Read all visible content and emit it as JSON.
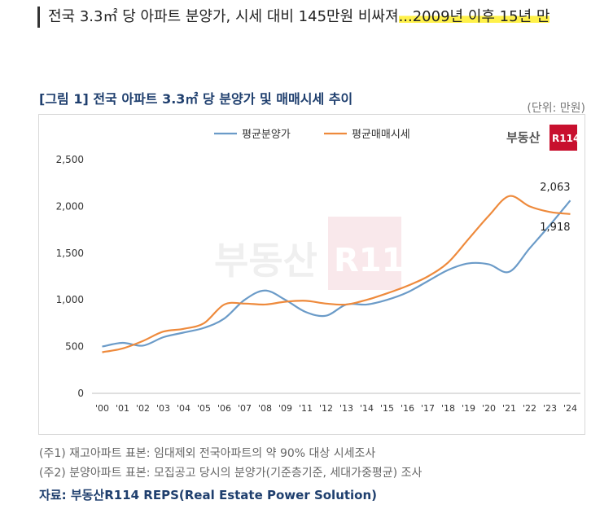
{
  "headline": {
    "pre": "전국 3.3㎡ 당 아파트 분양가, 시세 대비 145만원 비싸져",
    "highlight": "...2009년 이후 15년 만"
  },
  "figure_title": "[그림 1] 전국 아파트 3.3㎡ 당 분양가 및 매매시세 추이",
  "unit": "(단위: 만원)",
  "brand": {
    "text": "부동산",
    "badge": "R114",
    "color": "#c8102e"
  },
  "notes": [
    "(주1) 재고아파트 표본: 임대제외 전국아파트의 약 90% 대상 시세조사",
    "(주2) 분양아파트 표본: 모집공고 당시의 분양가(기준층기준, 세대가중평균) 조사"
  ],
  "source": "자료: 부동산R114 REPS(Real Estate Power Solution)",
  "chart_data": {
    "type": "line",
    "title": "",
    "xlabel": "",
    "ylabel": "",
    "ylim": [
      0,
      2500
    ],
    "yticks": [
      0,
      500,
      1000,
      1500,
      2000,
      2500
    ],
    "ytick_labels": [
      "0",
      "500",
      "1,000",
      "1,500",
      "2,000",
      "2,500"
    ],
    "categories": [
      "'00",
      "'01",
      "'02",
      "'03",
      "'04",
      "'05",
      "'06",
      "'07",
      "'08",
      "'09",
      "'11",
      "'12",
      "'13",
      "'14",
      "'15",
      "'16",
      "'17",
      "'18",
      "'19",
      "'20",
      "'21",
      "'22",
      "'23",
      "'24"
    ],
    "legend_position": "top",
    "series": [
      {
        "name": "평균분양가",
        "color": "#6b9bc8",
        "values": [
          500,
          540,
          510,
          600,
          650,
          700,
          800,
          1000,
          1100,
          1000,
          870,
          830,
          950,
          950,
          1000,
          1080,
          1200,
          1320,
          1390,
          1380,
          1300,
          1550,
          1800,
          2063
        ]
      },
      {
        "name": "평균매매시세",
        "color": "#ee8a3c",
        "values": [
          440,
          480,
          560,
          660,
          690,
          750,
          950,
          960,
          950,
          980,
          990,
          960,
          950,
          1000,
          1070,
          1150,
          1250,
          1400,
          1650,
          1900,
          2110,
          2000,
          1940,
          1918
        ]
      }
    ],
    "annotations": [
      {
        "series": 0,
        "index": 23,
        "text": "2,063"
      },
      {
        "series": 1,
        "index": 23,
        "text": "1,918"
      }
    ]
  }
}
